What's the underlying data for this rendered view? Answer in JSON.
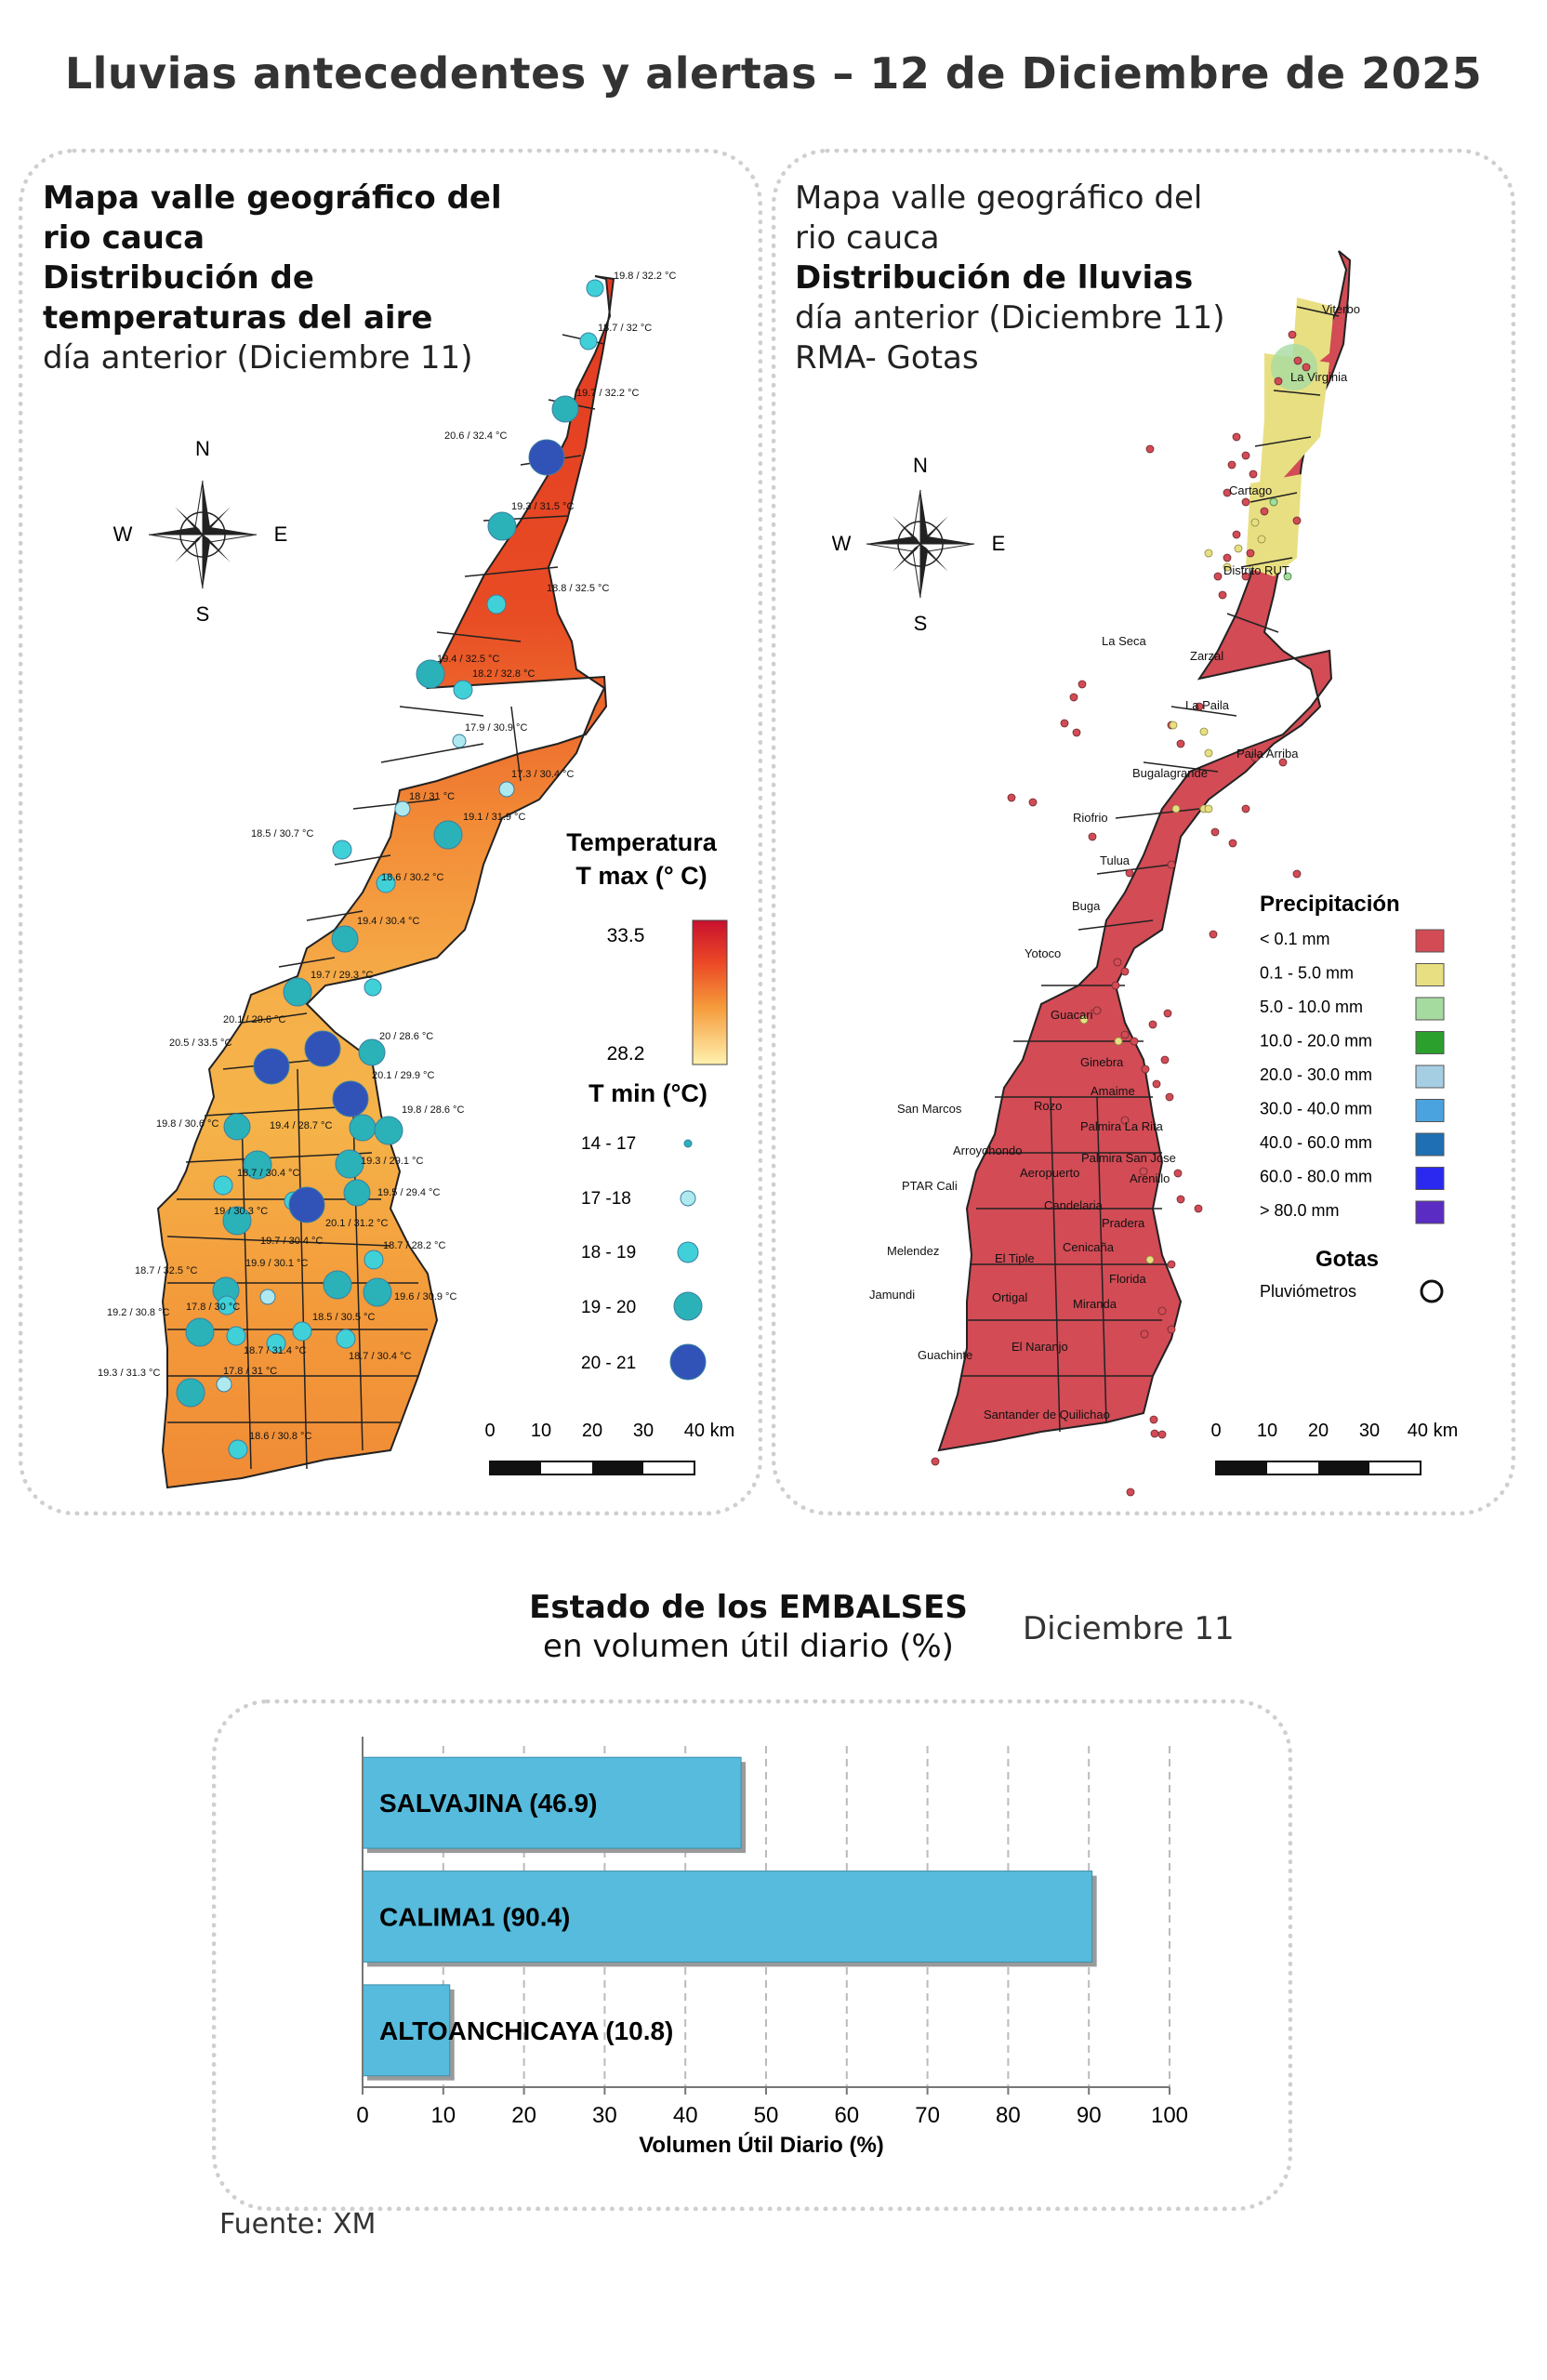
{
  "title": "Lluvias antecedentes y alertas – 12 de Diciembre de 2025",
  "left_panel": {
    "title_line1": "Mapa valle geográfico del",
    "title_line2": "rio cauca",
    "title_bold1": "Distribución de",
    "title_bold2": "temperaturas del aire",
    "subtitle": "día anterior (Diciembre 11)",
    "compass": {
      "n": "N",
      "s": "S",
      "e": "E",
      "w": "W"
    },
    "legend_title1": "Temperatura",
    "legend_title2": "T max (° C)",
    "tmax_high": "33.5",
    "tmax_low": "28.2",
    "tmin_title": "T min (°C)",
    "tmin_classes": [
      "14 - 17",
      "17 -18",
      "18 - 19",
      "19 - 20",
      "20 - 21"
    ],
    "scale_labels": [
      "0",
      "10",
      "20",
      "30",
      "40 km"
    ],
    "station_labels": [
      "19.8 / 32.2 °C",
      "18.7 / 32 °C",
      "19.7 / 32.2 °C",
      "20.6 / 32.4 °C",
      "19.3 / 31.5 °C",
      "18.8 / 32.5 °C",
      "19.4 / 32.5 °C",
      "18.2 / 32.8 °C",
      "17.9 / 30.9 °C",
      "17.3 / 30.4 °C",
      "18 / 31 °C",
      "19.1 / 31.9 °C",
      "18.5 / 30.7 °C",
      "18.6 / 30.2 °C",
      "19.4 / 30.4 °C",
      "19.7 / 29.3 °C",
      "20.1 / 29.6 °C",
      "20 / 28.6 °C",
      "20.5 / 33.5 °C",
      "20.1 / 29.9 °C",
      "19.8 / 30.6 °C",
      "19.4 / 28.7 °C",
      "19.8 / 28.6 °C",
      "18.7 / 30.4 °C",
      "19.3 / 29.1 °C",
      "19.5 / 29.4 °C",
      "19 / 30.3 °C",
      "20.1 / 31.2 °C",
      "19.7 / 30.4 °C",
      "18.7 / 28.2 °C",
      "19.9 / 30.1 °C",
      "18.7 / 32.5 °C",
      "17.8 / 30 °C",
      "19.6 / 30.9 °C",
      "19.2 / 30.8 °C",
      "18.5 / 30.5 °C",
      "18.7 / 31.4 °C",
      "18.7 / 30.4 °C",
      "19.3 / 31.3 °C",
      "17.8 / 31 °C",
      "18.6 / 30.8 °C"
    ]
  },
  "right_panel": {
    "title_line1": "Mapa valle geográfico del",
    "title_line2": "rio cauca",
    "title_bold": "Distribución de lluvias",
    "subtitle": "día anterior (Diciembre 11)",
    "subtitle2": "RMA- Gotas",
    "compass": {
      "n": "N",
      "s": "S",
      "e": "E",
      "w": "W"
    },
    "legend_title": "Precipitación",
    "precip_classes": [
      {
        "label": "< 0.1 mm",
        "color": "#d24b55"
      },
      {
        "label": "0.1 - 5.0 mm",
        "color": "#e8df82"
      },
      {
        "label": "5.0 - 10.0 mm",
        "color": "#a6dba0"
      },
      {
        "label": "10.0 - 20.0 mm",
        "color": "#2ca02c"
      },
      {
        "label": "20.0 - 30.0 mm",
        "color": "#a6cee3"
      },
      {
        "label": "30.0 - 40.0 mm",
        "color": "#4aa3df"
      },
      {
        "label": "40.0 - 60.0 mm",
        "color": "#1f6fb4"
      },
      {
        "label": "60.0 - 80.0 mm",
        "color": "#2b28f0"
      },
      {
        "label": "> 80.0 mm",
        "color": "#5b2cc4"
      }
    ],
    "gotas_title": "Gotas",
    "gotas_label": "Pluviómetros",
    "scale_labels": [
      "0",
      "10",
      "20",
      "30",
      "40 km"
    ],
    "place_names": [
      "Viterbo",
      "La Virginia",
      "Cartago",
      "Distrito RUT",
      "La Seca",
      "Zarzal",
      "La Paila",
      "Paila Arriba",
      "Bugalagrande",
      "Riofrio",
      "Tulua",
      "Buga",
      "Yotoco",
      "Guacari",
      "Ginebra",
      "Amaime",
      "Rozo",
      "Palmira La Rita",
      "San Marcos",
      "Arroyohondo",
      "Palmira San Jose",
      "Aeropuerto",
      "Arenillo",
      "PTAR Cali",
      "Candelaria",
      "Pradera",
      "Melendez",
      "El Tiple",
      "Cenicaña",
      "Florida",
      "Jamundi",
      "Ortigal",
      "Miranda",
      "El Naranjo",
      "Guachinte",
      "Santander de Quilichao"
    ]
  },
  "reservoirs": {
    "title_bold": "Estado de los EMBALSES",
    "title_normal": "en volumen útil diario (%)",
    "date": "Diciembre 11",
    "source": "Fuente: XM"
  },
  "chart_data": {
    "type": "bar",
    "orientation": "horizontal",
    "categories": [
      "SALVAJINA",
      "CALIMA1",
      "ALTOANCHICAYA"
    ],
    "values": [
      46.9,
      90.4,
      10.8
    ],
    "bar_labels": [
      "SALVAJINA (46.9)",
      "CALIMA1 (90.4)",
      "ALTOANCHICAYA (10.8)"
    ],
    "xlabel": "Volumen Útil Diario (%)",
    "xlim": [
      0,
      100
    ],
    "xticks": [
      "0",
      "10",
      "20",
      "30",
      "40",
      "50",
      "60",
      "70",
      "80",
      "90",
      "100"
    ],
    "grid": "vertical-dashed",
    "bar_color": "#56bbdc"
  }
}
